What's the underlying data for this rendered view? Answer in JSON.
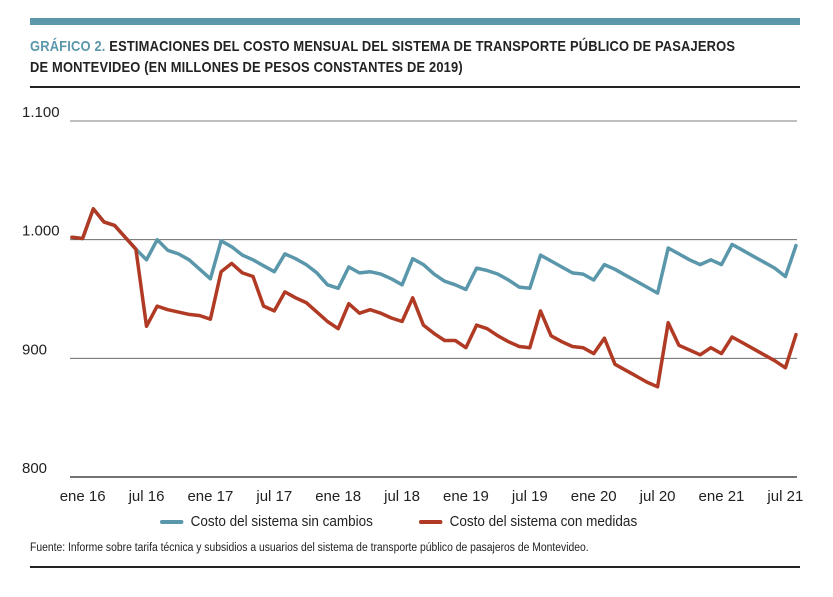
{
  "header": {
    "label": "GRÁFICO 2.",
    "title_line1": "ESTIMACIONES DEL COSTO MENSUAL DEL SISTEMA DE TRANSPORTE PÚBLICO DE PASAJEROS",
    "title_line2": "DE MONTEVIDEO (EN MILLONES DE PESOS CONSTANTES DE 2019)"
  },
  "chart_data": {
    "type": "line",
    "title": "Estimaciones del costo mensual del sistema de transporte público de pasajeros de Montevideo (en millones de pesos constantes de 2019)",
    "xlabel": "",
    "ylabel": "",
    "ylim": [
      800,
      1100
    ],
    "yticks": [
      800,
      900,
      1000,
      1100
    ],
    "ytick_labels": [
      "800",
      "900",
      "1.000",
      "1.100"
    ],
    "xtick_labels": [
      "ene 16",
      "jul 16",
      "ene 17",
      "jul 17",
      "ene 18",
      "jul 18",
      "ene 19",
      "jul 19",
      "ene 20",
      "jul 20",
      "ene 21",
      "jul 21"
    ],
    "xtick_index": [
      1,
      7,
      13,
      19,
      25,
      31,
      37,
      43,
      49,
      55,
      61,
      67
    ],
    "grid": "horizontal",
    "legend": "bottom",
    "colors": {
      "sin_cambios": "#5b97ab",
      "con_medidas": "#b03a24",
      "grid": "#555555",
      "axis": "#222222"
    },
    "series": [
      {
        "name": "Costo del sistema sin cambios",
        "color": "#5b97ab",
        "values": [
          1002,
          1001,
          1026,
          1015,
          1012,
          1002,
          992,
          983,
          1000,
          991,
          988,
          983,
          975,
          967,
          999,
          994,
          987,
          983,
          978,
          973,
          988,
          984,
          979,
          972,
          962,
          959,
          977,
          972,
          973,
          971,
          967,
          962,
          984,
          979,
          971,
          965,
          962,
          958,
          976,
          974,
          971,
          966,
          960,
          959,
          987,
          982,
          977,
          972,
          971,
          966,
          979,
          975,
          970,
          965,
          960,
          955,
          993,
          988,
          983,
          979,
          983,
          979,
          996,
          991,
          986,
          981,
          976,
          969,
          995
        ]
      },
      {
        "name": "Costo del sistema con medidas",
        "color": "#b03a24",
        "values": [
          1002,
          1001,
          1026,
          1015,
          1012,
          1002,
          992,
          927,
          944,
          941,
          939,
          937,
          936,
          933,
          973,
          980,
          972,
          969,
          944,
          940,
          956,
          951,
          947,
          939,
          931,
          925,
          946,
          938,
          941,
          938,
          934,
          931,
          951,
          928,
          921,
          915,
          915,
          909,
          928,
          925,
          919,
          914,
          910,
          909,
          940,
          919,
          914,
          910,
          909,
          904,
          917,
          895,
          890,
          885,
          880,
          876,
          930,
          911,
          907,
          903,
          909,
          904,
          918,
          913,
          908,
          903,
          898,
          892,
          920
        ]
      }
    ]
  }
}
